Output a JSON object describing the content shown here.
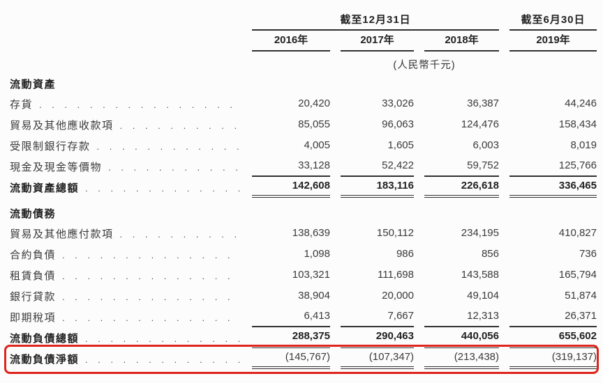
{
  "meta": {
    "dot_leader": ". . . . . . . . . . . . . . . . . . . . . . . . . . . . . . . . . . . . . . . .",
    "colors": {
      "highlight_border": "#de241b",
      "text": "#333333",
      "background": "#fcfcfc"
    }
  },
  "header": {
    "period_group_dec": "截至12月31日",
    "period_group_jun": "截至6月30日",
    "years": [
      "2016年",
      "2017年",
      "2018年",
      "2019年"
    ],
    "currency_note": "(人民幣千元)"
  },
  "table": {
    "sections": [
      {
        "title": "流動資產",
        "rows": [
          {
            "label": "存貨",
            "values": [
              "20,420",
              "33,026",
              "36,387",
              "44,246"
            ]
          },
          {
            "label": "貿易及其他應收款項",
            "values": [
              "85,055",
              "96,063",
              "124,476",
              "158,434"
            ]
          },
          {
            "label": "受限制銀行存款",
            "values": [
              "4,005",
              "1,605",
              "6,003",
              "8,019"
            ]
          },
          {
            "label": "現金及現金等價物",
            "values": [
              "33,128",
              "52,422",
              "59,752",
              "125,766"
            ]
          },
          {
            "label": "流動資產總額",
            "values": [
              "142,608",
              "183,116",
              "226,618",
              "336,465"
            ]
          }
        ]
      },
      {
        "title": "流動債務",
        "rows": [
          {
            "label": "貿易及其他應付款項",
            "values": [
              "138,639",
              "150,112",
              "234,195",
              "410,827"
            ]
          },
          {
            "label": "合約負債",
            "values": [
              "1,098",
              "986",
              "856",
              "736"
            ]
          },
          {
            "label": "租賃負債",
            "values": [
              "103,321",
              "111,698",
              "143,588",
              "165,794"
            ]
          },
          {
            "label": "銀行貸款",
            "values": [
              "38,904",
              "20,000",
              "49,104",
              "51,874"
            ]
          },
          {
            "label": "即期稅項",
            "values": [
              "6,413",
              "7,667",
              "12,313",
              "26,371"
            ]
          },
          {
            "label": "流動負債總額",
            "values": [
              "288,375",
              "290,463",
              "440,056",
              "655,602"
            ]
          },
          {
            "label": "流動負債淨額",
            "values": [
              "(145,767)",
              "(107,347)",
              "(213,438)",
              "(319,137)"
            ]
          }
        ]
      }
    ]
  }
}
